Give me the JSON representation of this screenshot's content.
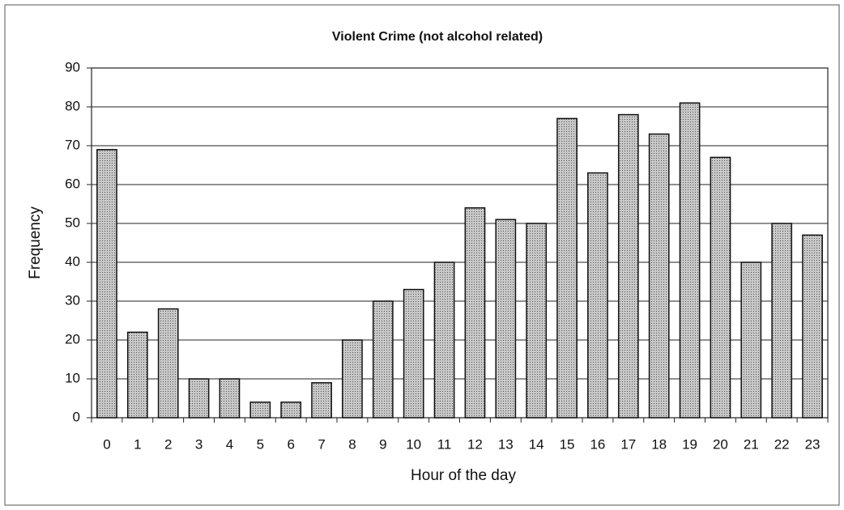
{
  "chart_data": {
    "type": "bar",
    "title": "Violent Crime (not alcohol related)",
    "x_label": "Hour of the day",
    "y_label": "Frequency",
    "categories": [
      "0",
      "1",
      "2",
      "3",
      "4",
      "5",
      "6",
      "7",
      "8",
      "9",
      "10",
      "11",
      "12",
      "13",
      "14",
      "15",
      "16",
      "17",
      "18",
      "19",
      "20",
      "21",
      "22",
      "23"
    ],
    "values": [
      69,
      22,
      28,
      10,
      10,
      4,
      4,
      9,
      20,
      30,
      33,
      40,
      54,
      51,
      50,
      77,
      63,
      78,
      73,
      81,
      67,
      40,
      50,
      47
    ],
    "color": "#b4b4b4",
    "ylim": [
      0,
      90
    ],
    "yticks": [
      0,
      10,
      20,
      30,
      40,
      50,
      60,
      70,
      80,
      90
    ],
    "grid": true
  }
}
